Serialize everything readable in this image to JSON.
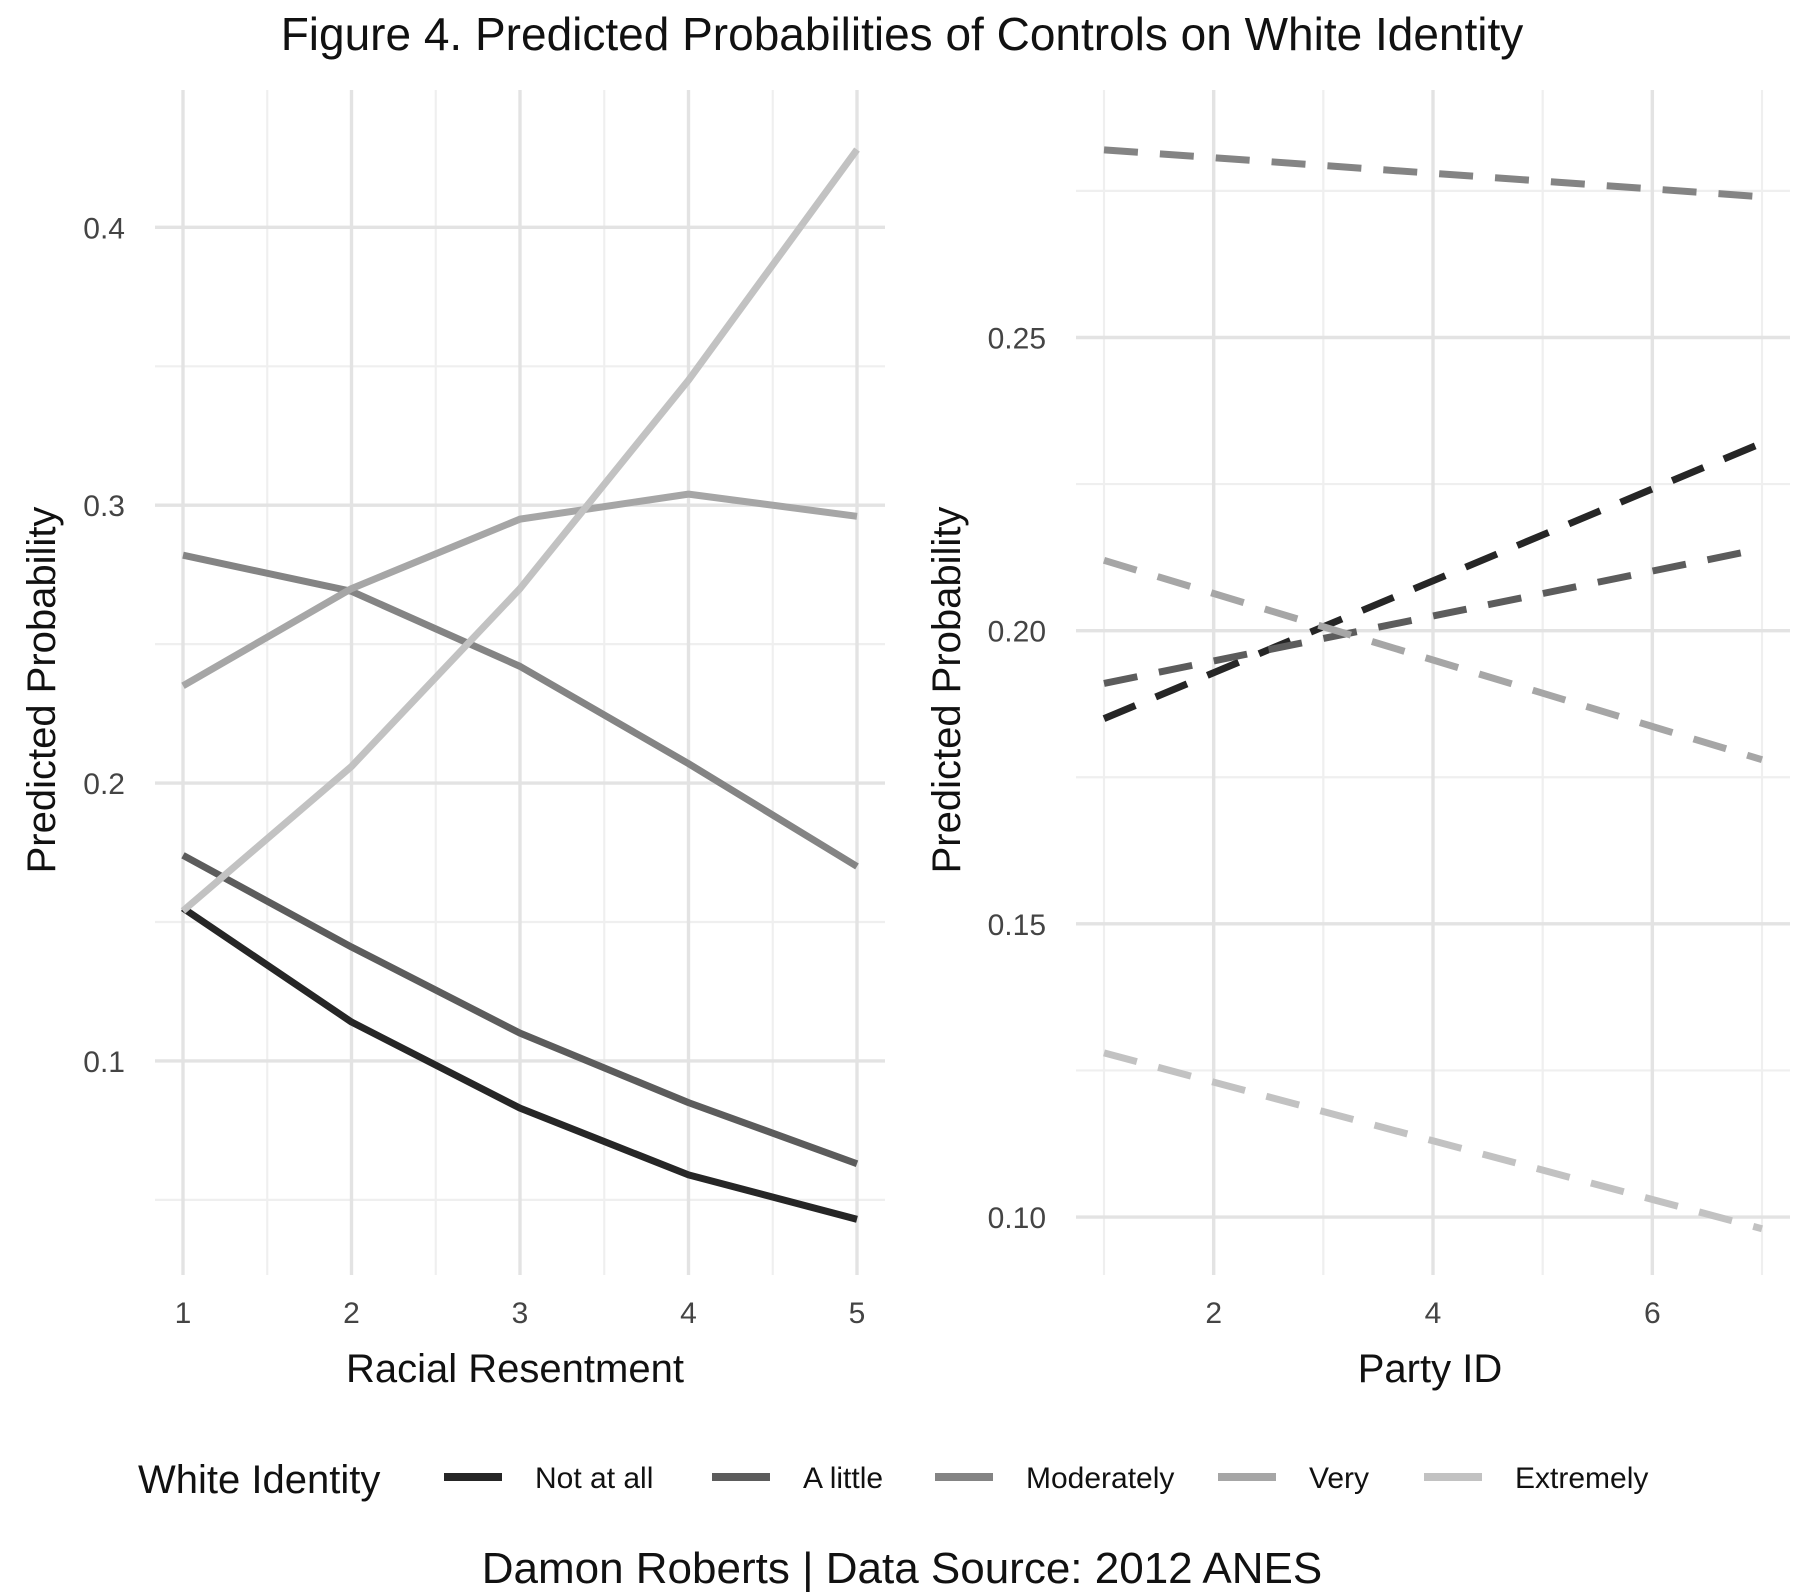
{
  "title": "Figure 4. Predicted Probabilities of Controls on White Identity",
  "caption": "Damon Roberts | Data Source: 2012 ANES",
  "colors": {
    "background": "#ffffff",
    "grid_major": "#e3e3e3",
    "grid_minor": "#efefef",
    "Not at all": "#262626",
    "A little": "#5c5c5c",
    "Moderately": "#848484",
    "Very": "#a6a6a6",
    "Extremely": "#c2c2c2"
  },
  "legend": {
    "title": "White Identity",
    "position": "bottom",
    "items": [
      "Not at all",
      "A little",
      "Moderately",
      "Very",
      "Extremely"
    ]
  },
  "chart_data": [
    {
      "type": "line",
      "line_style": "solid",
      "grid": true,
      "xlabel": "Racial Resentment",
      "ylabel": "Predicted Probability",
      "x": [
        1,
        2,
        3,
        4,
        5
      ],
      "xlim": [
        1,
        5
      ],
      "ylim": [
        0.028,
        0.43
      ],
      "x_ticks": [
        "1",
        "2",
        "3",
        "4",
        "5"
      ],
      "x_tick_values": [
        1,
        2,
        3,
        4,
        5
      ],
      "y_ticks": [
        "0.1",
        "0.2",
        "0.3",
        "0.4"
      ],
      "y_tick_values": [
        0.1,
        0.2,
        0.3,
        0.4
      ],
      "series": [
        {
          "name": "Not at all",
          "values": [
            0.155,
            0.114,
            0.083,
            0.059,
            0.043
          ]
        },
        {
          "name": "A little",
          "values": [
            0.174,
            0.141,
            0.11,
            0.085,
            0.063
          ]
        },
        {
          "name": "Moderately",
          "values": [
            0.282,
            0.269,
            0.242,
            0.207,
            0.17
          ]
        },
        {
          "name": "Very",
          "values": [
            0.235,
            0.27,
            0.295,
            0.304,
            0.296
          ]
        },
        {
          "name": "Extremely",
          "values": [
            0.154,
            0.206,
            0.27,
            0.345,
            0.428
          ]
        }
      ]
    },
    {
      "type": "line",
      "line_style": "dashed",
      "grid": true,
      "xlabel": "Party ID",
      "ylabel": "Predicted Probability",
      "x": [
        1,
        7
      ],
      "xlim": [
        1,
        7
      ],
      "ylim": [
        0.0925,
        0.283
      ],
      "x_ticks": [
        "2",
        "4",
        "6"
      ],
      "x_tick_values": [
        2,
        4,
        6
      ],
      "y_ticks": [
        "0.10",
        "0.15",
        "0.20",
        "0.25"
      ],
      "y_tick_values": [
        0.1,
        0.15,
        0.2,
        0.25
      ],
      "series": [
        {
          "name": "Not at all",
          "values": [
            0.185,
            0.232
          ]
        },
        {
          "name": "A little",
          "values": [
            0.191,
            0.214
          ]
        },
        {
          "name": "Moderately",
          "values": [
            0.282,
            0.274
          ]
        },
        {
          "name": "Very",
          "values": [
            0.212,
            0.178
          ]
        },
        {
          "name": "Extremely",
          "values": [
            0.128,
            0.098
          ]
        }
      ]
    }
  ]
}
